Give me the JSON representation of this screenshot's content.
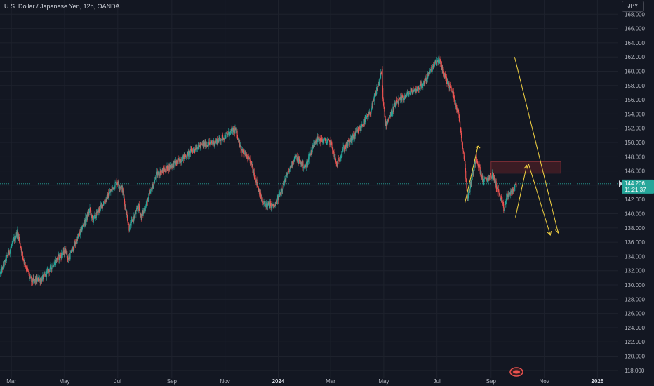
{
  "header": {
    "title": "U.S. Dollar / Japanese Yen, 12h, OANDA",
    "currency": "JPY"
  },
  "colors": {
    "background": "#131722",
    "up": "#26a69a",
    "down": "#ef5350",
    "drawing": "#f5d442",
    "zone_fill": "#4a1f26",
    "zone_stroke": "#7a2e36",
    "last_price": "#26a69a"
  },
  "chart_data": {
    "type": "candlestick",
    "y_axis": {
      "range": [
        117,
        170
      ],
      "ticks": [
        "168.000",
        "166.000",
        "164.000",
        "162.000",
        "160.000",
        "158.000",
        "156.000",
        "154.000",
        "152.000",
        "150.000",
        "148.000",
        "146.000",
        "144.000",
        "142.000",
        "140.000",
        "138.000",
        "136.000",
        "134.000",
        "132.000",
        "130.000",
        "128.000",
        "126.000",
        "124.000",
        "122.000",
        "120.000",
        "118.000"
      ]
    },
    "x_axis": {
      "range": [
        "2023-02-16",
        "2025-01-24"
      ],
      "ticks": [
        {
          "label": "Mar",
          "date": "2023-03-01",
          "bold": false
        },
        {
          "label": "May",
          "date": "2023-05-01",
          "bold": false
        },
        {
          "label": "Jul",
          "date": "2023-07-01",
          "bold": false
        },
        {
          "label": "Sep",
          "date": "2023-09-01",
          "bold": false
        },
        {
          "label": "Nov",
          "date": "2023-11-01",
          "bold": false
        },
        {
          "label": "2024",
          "date": "2024-01-01",
          "bold": true
        },
        {
          "label": "Mar",
          "date": "2024-03-01",
          "bold": false
        },
        {
          "label": "May",
          "date": "2024-05-01",
          "bold": false
        },
        {
          "label": "Jul",
          "date": "2024-07-01",
          "bold": false
        },
        {
          "label": "Sep",
          "date": "2024-09-01",
          "bold": false
        },
        {
          "label": "Nov",
          "date": "2024-11-01",
          "bold": false
        },
        {
          "label": "2025",
          "date": "2025-01-01",
          "bold": true
        }
      ]
    },
    "price_path": [
      [
        "2023-02-16",
        131.5
      ],
      [
        "2023-03-08",
        137.5
      ],
      [
        "2023-03-15",
        133.5
      ],
      [
        "2023-03-24",
        130.5
      ],
      [
        "2023-04-05",
        130.8
      ],
      [
        "2023-04-25",
        134.0
      ],
      [
        "2023-05-03",
        134.8
      ],
      [
        "2023-05-05",
        133.5
      ],
      [
        "2023-05-30",
        140.5
      ],
      [
        "2023-06-02",
        139.0
      ],
      [
        "2023-06-30",
        144.5
      ],
      [
        "2023-07-06",
        143.5
      ],
      [
        "2023-07-14",
        138.0
      ],
      [
        "2023-07-25",
        141.0
      ],
      [
        "2023-07-28",
        139.5
      ],
      [
        "2023-08-15",
        145.5
      ],
      [
        "2023-09-10",
        147.5
      ],
      [
        "2023-10-01",
        149.5
      ],
      [
        "2023-10-20",
        150.0
      ],
      [
        "2023-11-13",
        151.8
      ],
      [
        "2023-11-20",
        149.0
      ],
      [
        "2023-12-01",
        147.0
      ],
      [
        "2023-12-14",
        141.5
      ],
      [
        "2023-12-28",
        141.0
      ],
      [
        "2024-01-10",
        145.0
      ],
      [
        "2024-01-20",
        148.0
      ],
      [
        "2024-02-01",
        146.5
      ],
      [
        "2024-02-13",
        150.5
      ],
      [
        "2024-03-01",
        150.0
      ],
      [
        "2024-03-08",
        146.8
      ],
      [
        "2024-03-15",
        149.0
      ],
      [
        "2024-04-01",
        151.5
      ],
      [
        "2024-04-15",
        154.0
      ],
      [
        "2024-04-29",
        160.0
      ],
      [
        "2024-04-30",
        156.0
      ],
      [
        "2024-05-03",
        152.5
      ],
      [
        "2024-05-15",
        155.5
      ],
      [
        "2024-05-31",
        157.0
      ],
      [
        "2024-06-14",
        158.0
      ],
      [
        "2024-06-26",
        160.5
      ],
      [
        "2024-07-03",
        161.7
      ],
      [
        "2024-07-11",
        159.0
      ],
      [
        "2024-07-19",
        157.0
      ],
      [
        "2024-07-26",
        153.8
      ],
      [
        "2024-08-02",
        147.0
      ],
      [
        "2024-08-05",
        142.0
      ],
      [
        "2024-08-15",
        148.0
      ],
      [
        "2024-08-23",
        144.5
      ],
      [
        "2024-09-03",
        145.5
      ],
      [
        "2024-09-16",
        140.5
      ],
      [
        "2024-09-19",
        142.5
      ],
      [
        "2024-09-25",
        143.0
      ],
      [
        "2024-09-30",
        144.2
      ]
    ],
    "last_price": {
      "value": "144.206",
      "countdown": "11:21:37",
      "level": 144.206
    },
    "zone": {
      "x_start": "2024-09-01",
      "x_end": "2024-11-20",
      "y_low": 145.7,
      "y_high": 147.3
    },
    "drawings": [
      {
        "kind": "line",
        "from": [
          "2024-08-02",
          141.5
        ],
        "to": [
          "2024-08-17",
          149.5
        ]
      },
      {
        "kind": "arrow",
        "from": [
          "2024-08-17",
          149.5
        ],
        "to": [
          "2024-08-20",
          149.5
        ]
      },
      {
        "kind": "arrow",
        "from": [
          "2024-09-29",
          139.5
        ],
        "to": [
          "2024-10-12",
          146.8
        ]
      },
      {
        "kind": "arrow",
        "from": [
          "2024-10-14",
          147.0
        ],
        "to": [
          "2024-11-08",
          137.0
        ]
      },
      {
        "kind": "arrow",
        "from": [
          "2024-09-28",
          162.0
        ],
        "to": [
          "2024-11-17",
          137.3
        ]
      }
    ],
    "watermark_icon": "tradingview-logo-icon"
  }
}
